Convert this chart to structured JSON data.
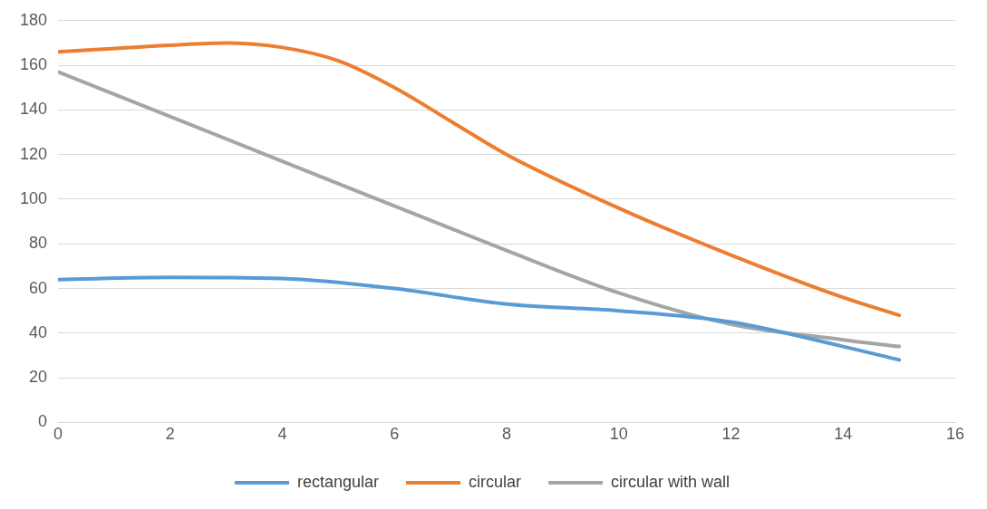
{
  "chart_data": {
    "type": "line",
    "xlim": [
      0,
      16
    ],
    "xticks": [
      0,
      2,
      4,
      6,
      8,
      10,
      12,
      14,
      16
    ],
    "ylim": [
      0,
      180
    ],
    "yticks": [
      0,
      20,
      40,
      60,
      80,
      100,
      120,
      140,
      160,
      180
    ],
    "grid": "y",
    "legend": "bottom",
    "marker": "none",
    "line_style": "solid",
    "series": [
      {
        "name": "rectangular",
        "color": "#5b9bd5",
        "x": [
          0,
          2,
          4,
          6,
          8,
          10,
          12,
          14,
          15
        ],
        "values": [
          64,
          65,
          64.5,
          60,
          53,
          50,
          45,
          34,
          28
        ]
      },
      {
        "name": "circular",
        "color": "#ed7d31",
        "x": [
          0,
          2,
          3,
          4,
          5,
          6,
          7,
          8,
          10,
          12,
          14,
          15
        ],
        "values": [
          166,
          169,
          170,
          168,
          162,
          150,
          135,
          120,
          96,
          75,
          56,
          48
        ]
      },
      {
        "name": "circular with wall",
        "color": "#a5a5a5",
        "x": [
          0,
          4,
          8,
          10,
          12,
          14,
          15
        ],
        "values": [
          157,
          117,
          77,
          58,
          44,
          37,
          34
        ]
      }
    ]
  }
}
